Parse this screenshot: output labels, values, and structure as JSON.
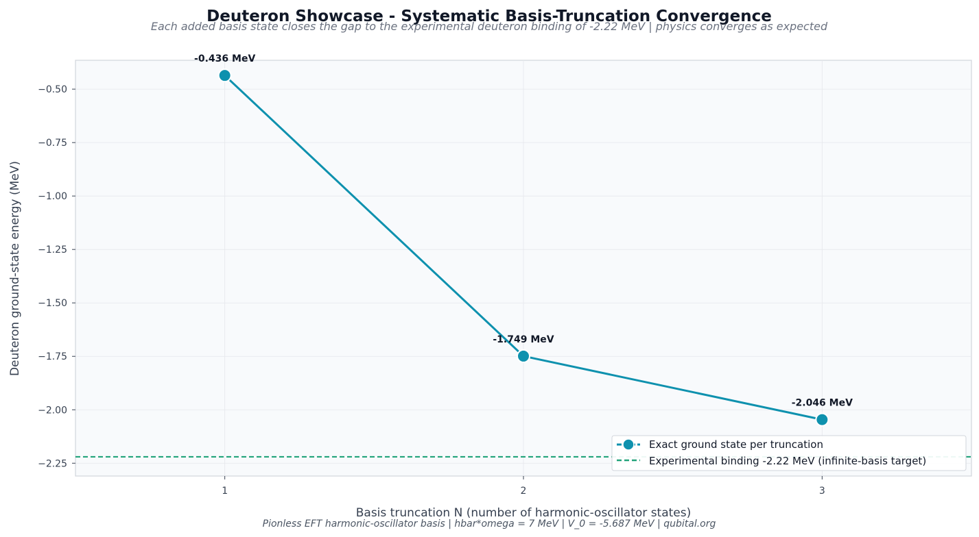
{
  "chart_data": {
    "type": "line",
    "title": "Deuteron Showcase - Systematic Basis-Truncation Convergence",
    "subtitle": "Each added basis state closes the gap to the experimental deuteron binding of -2.22 MeV  |  physics converges as expected",
    "footer": "Pionless EFT harmonic-oscillator basis  |  hbar*omega = 7 MeV  |  V_0 = -5.687 MeV  |  qubital.org",
    "xlabel": "Basis truncation  N  (number of harmonic-oscillator states)",
    "ylabel": "Deuteron ground-state energy (MeV)",
    "xlim": [
      0.5,
      3.5
    ],
    "ylim": [
      -2.31,
      -0.365
    ],
    "xticks": [
      1,
      2,
      3
    ],
    "xtick_labels": [
      "1",
      "2",
      "3"
    ],
    "yticks": [
      -0.5,
      -0.75,
      -1.0,
      -1.25,
      -1.5,
      -1.75,
      -2.0,
      -2.25
    ],
    "ytick_labels": [
      "−0.50",
      "−0.75",
      "−1.00",
      "−1.25",
      "−1.50",
      "−1.75",
      "−2.00",
      "−2.25"
    ],
    "grid": true,
    "legend_position": "bottom-right",
    "series": [
      {
        "name": "Exact ground state per truncation",
        "x": [
          1,
          2,
          3
        ],
        "y": [
          -0.436,
          -1.749,
          -2.046
        ],
        "labels": [
          "-0.436 MeV",
          "-1.749 MeV",
          "-2.046 MeV"
        ],
        "color": "#0e91ae"
      }
    ],
    "reference_lines": [
      {
        "name": "Experimental binding  -2.22 MeV (infinite-basis target)",
        "y": -2.22,
        "style": "dashed",
        "color": "#22a37a"
      }
    ],
    "colors": {
      "plot_background": "#f8fafc",
      "frame": "#d1d5db",
      "grid": "#e5e7eb"
    }
  }
}
